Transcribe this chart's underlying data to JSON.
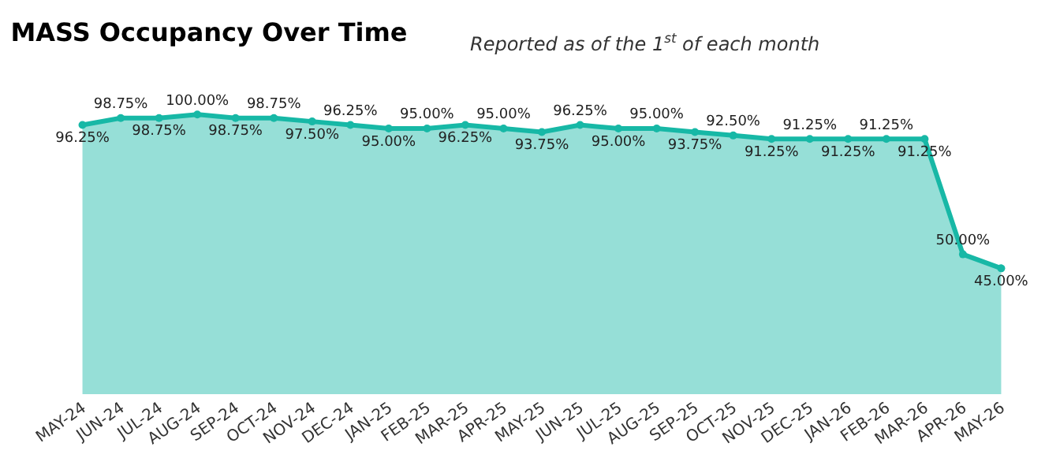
{
  "chart_data": {
    "type": "area",
    "title": "MASS Occupancy Over Time",
    "subtitle": "Reported as of the 1$^{st}$ of each month",
    "categories": [
      "MAY-24",
      "JUN-24",
      "JUL-24",
      "AUG-24",
      "SEP-24",
      "OCT-24",
      "NOV-24",
      "DEC-24",
      "JAN-25",
      "FEB-25",
      "MAR-25",
      "APR-25",
      "MAY-25",
      "JUN-25",
      "JUL-25",
      "AUG-25",
      "SEP-25",
      "OCT-25",
      "NOV-25",
      "DEC-25",
      "JAN-26",
      "FEB-26",
      "MAR-26",
      "APR-26",
      "MAY-26"
    ],
    "series": [
      {
        "color": "#17b8a6",
        "values": [
          96.25,
          98.75,
          98.75,
          100.0,
          98.75,
          98.75,
          97.5,
          96.25,
          95.0,
          95.0,
          96.25,
          95.0,
          93.75,
          96.25,
          95.0,
          95.0,
          93.75,
          92.5,
          91.25,
          91.25,
          91.25,
          91.25,
          91.25,
          50.0,
          45.0
        ],
        "value_labels": [
          "96.25%",
          "98.75%",
          "98.75%",
          "100.00%",
          "98.75%",
          "98.75%",
          "97.50%",
          "96.25%",
          "95.00%",
          "95.00%",
          "96.25%",
          "95.00%",
          "93.75%",
          "96.25%",
          "95.00%",
          "95.00%",
          "93.75%",
          "92.50%",
          "91.25%",
          "91.25%",
          "91.25%",
          "91.25%",
          "91.25%",
          "50.00%",
          "45.00%"
        ]
      }
    ],
    "marker": "circle",
    "legend": false,
    "tick_labels": "x"
  }
}
